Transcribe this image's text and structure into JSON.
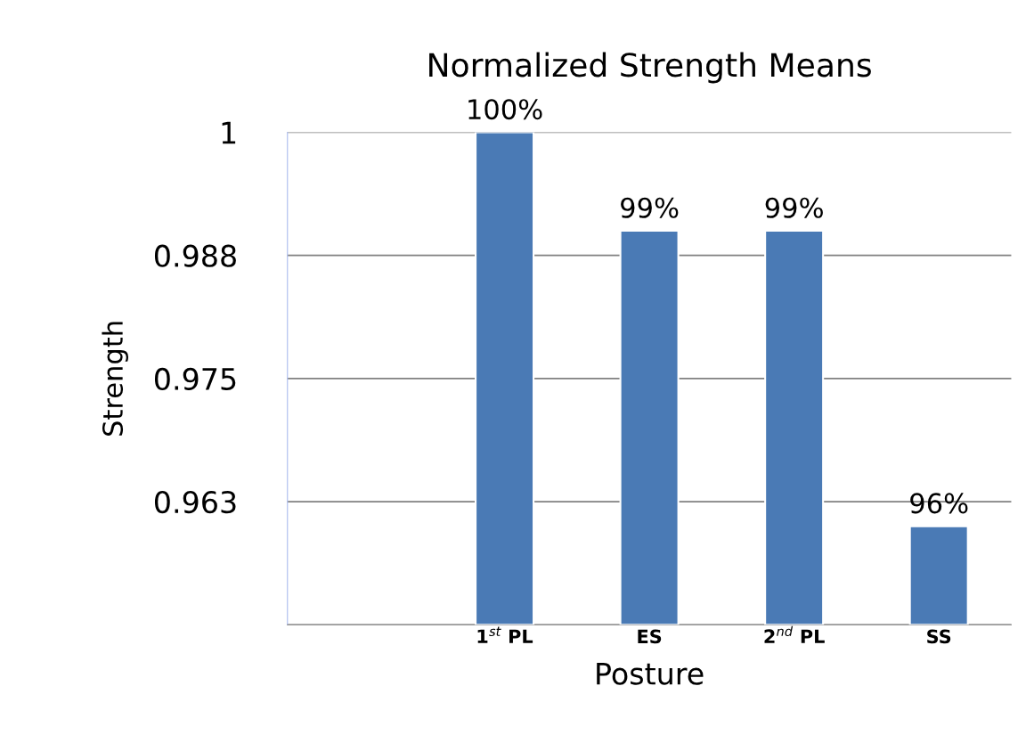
{
  "chart_data": {
    "type": "bar",
    "title": "Normalized Strength Means",
    "xlabel": "Posture",
    "ylabel": "Strength",
    "categories": [
      null,
      "1$^{st}$ PL",
      "ES",
      "2$^{nd}$ PL",
      "SS"
    ],
    "values": [
      null,
      1.0,
      0.99,
      0.99,
      0.96
    ],
    "value_labels": [
      null,
      "100%",
      "99%",
      "99%",
      "96%"
    ],
    "color": "#4a7ab5",
    "ylim": [
      0.95,
      1.0
    ],
    "yticks": [
      {
        "value": 0.95,
        "label": null
      },
      {
        "value": 0.9625,
        "label": "0.963"
      },
      {
        "value": 0.975,
        "label": "0.975"
      },
      {
        "value": 0.9875,
        "label": "0.988"
      },
      {
        "value": 1.0,
        "label": "1"
      }
    ],
    "grid": "y",
    "legend": false
  }
}
